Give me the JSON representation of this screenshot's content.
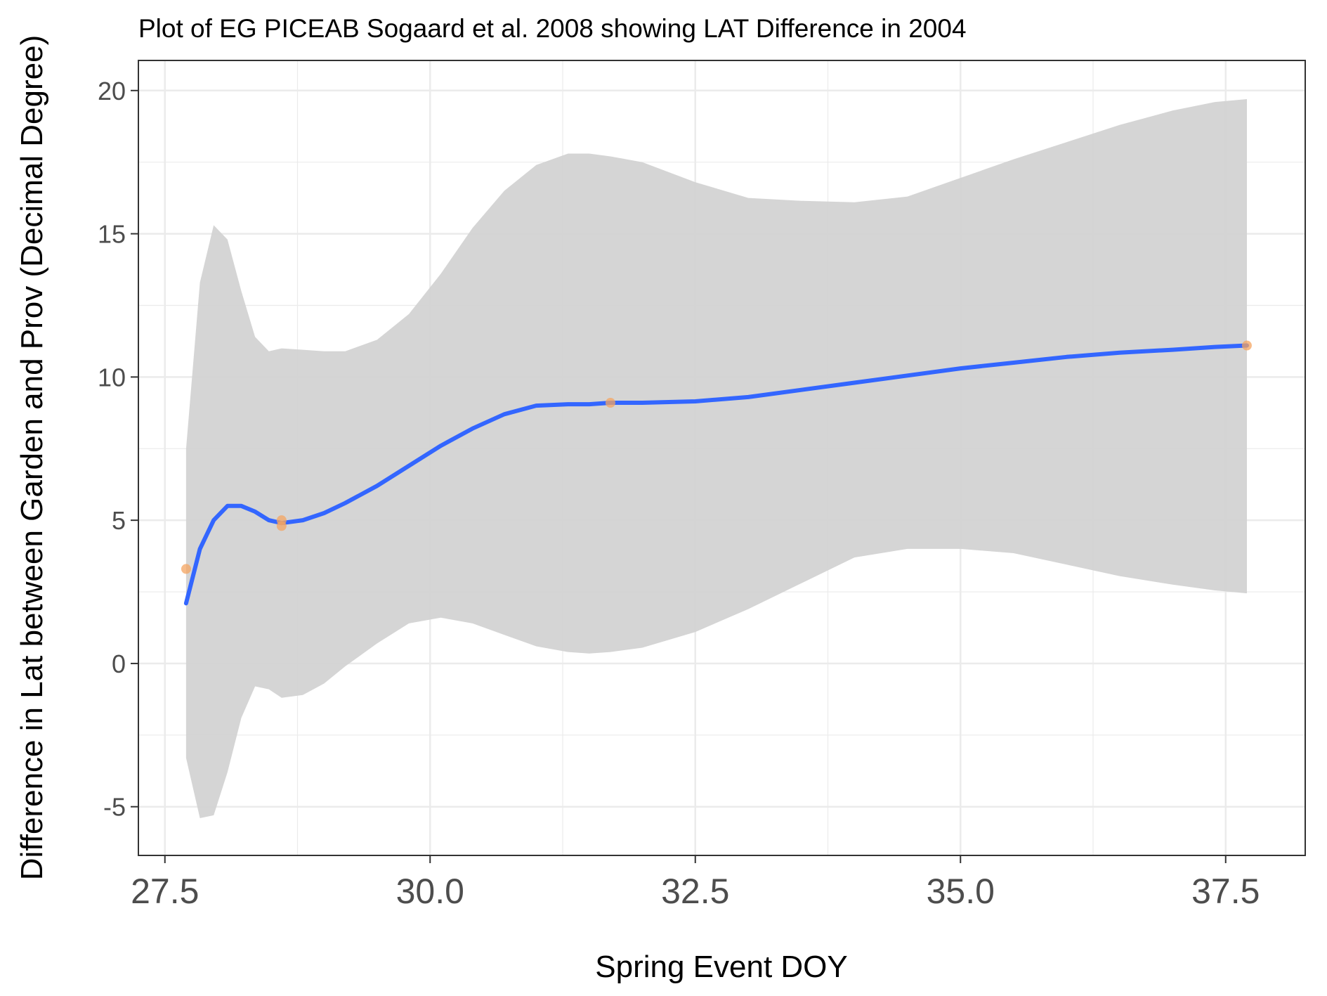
{
  "chart_data": {
    "type": "scatter",
    "title": "Plot of EG PICEAB Sogaard et al. 2008 showing LAT Difference in 2004",
    "xlabel": "Spring Event DOY",
    "ylabel": "Difference in Lat between Garden and Prov (Decimal Degree)",
    "xlim": [
      27.25,
      38.25
    ],
    "ylim": [
      -6.7,
      21.05
    ],
    "x_ticks": [
      27.5,
      30.0,
      32.5,
      35.0,
      37.5
    ],
    "x_tick_labels": [
      "27.5",
      "30.0",
      "32.5",
      "35.0",
      "37.5"
    ],
    "y_ticks": [
      -5,
      0,
      5,
      10,
      15,
      20
    ],
    "y_tick_labels": [
      "-5",
      "0",
      "5",
      "10",
      "15",
      "20"
    ],
    "grid": true,
    "points": {
      "color": "#F4A460",
      "x": [
        27.7,
        28.6,
        28.6,
        31.7,
        37.7
      ],
      "y": [
        3.3,
        5.0,
        4.8,
        9.1,
        11.1
      ]
    },
    "smooth": {
      "color": "#3366FF",
      "x": [
        27.7,
        27.83,
        27.96,
        28.09,
        28.22,
        28.35,
        28.48,
        28.6,
        28.8,
        29.0,
        29.2,
        29.5,
        29.8,
        30.1,
        30.4,
        30.7,
        31.0,
        31.3,
        31.5,
        31.7,
        32.0,
        32.5,
        33.0,
        33.5,
        34.0,
        34.5,
        35.0,
        35.5,
        36.0,
        36.5,
        37.0,
        37.4,
        37.7
      ],
      "y": [
        2.1,
        4.0,
        5.0,
        5.5,
        5.5,
        5.3,
        5.0,
        4.9,
        5.0,
        5.25,
        5.6,
        6.2,
        6.9,
        7.6,
        8.2,
        8.7,
        9.0,
        9.05,
        9.05,
        9.1,
        9.1,
        9.15,
        9.3,
        9.55,
        9.8,
        10.05,
        10.3,
        10.5,
        10.7,
        10.85,
        10.95,
        11.05,
        11.1
      ],
      "ci_upper": [
        7.5,
        13.3,
        15.3,
        14.8,
        13.0,
        11.4,
        10.9,
        11.0,
        10.95,
        10.9,
        10.9,
        11.3,
        12.2,
        13.6,
        15.2,
        16.5,
        17.4,
        17.8,
        17.8,
        17.7,
        17.5,
        16.8,
        16.25,
        16.15,
        16.1,
        16.3,
        16.95,
        17.6,
        18.2,
        18.8,
        19.3,
        19.6,
        19.7
      ],
      "ci_lower": [
        -3.3,
        -5.4,
        -5.3,
        -3.8,
        -1.9,
        -0.8,
        -0.9,
        -1.2,
        -1.1,
        -0.7,
        -0.1,
        0.7,
        1.4,
        1.6,
        1.4,
        1.0,
        0.6,
        0.4,
        0.35,
        0.4,
        0.55,
        1.1,
        1.9,
        2.8,
        3.7,
        4.0,
        4.0,
        3.85,
        3.45,
        3.05,
        2.75,
        2.55,
        2.45
      ],
      "ci_color": "#d3d3d3"
    }
  }
}
